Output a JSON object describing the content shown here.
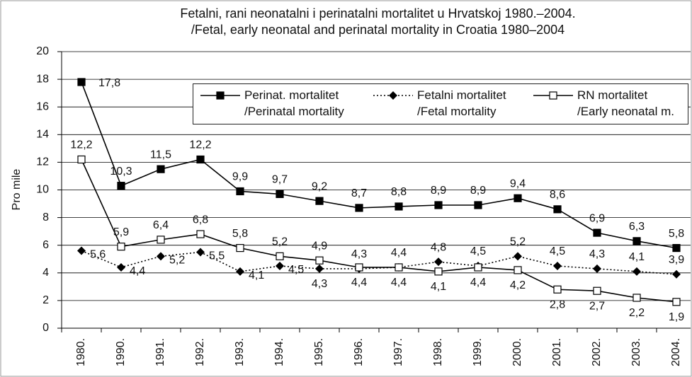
{
  "chart_data": {
    "type": "line",
    "title": "Fetalni, rani neonatalni i perinatalni mortalitet u Hrvatskoj 1980.–2004.\n/Fetal, early neonatal and perinatal mortality in Croatia 1980–2004",
    "y_label": "Pro mile",
    "categories": [
      "1980.",
      "1990.",
      "1991.",
      "1992.",
      "1993.",
      "1994.",
      "1995.",
      "1996.",
      "1997.",
      "1998.",
      "1999.",
      "2000.",
      "2001.",
      "2002.",
      "2003.",
      "2004."
    ],
    "series": [
      {
        "name": "Perinat. mortalitet\n/Perinatal mortality",
        "color": "#000000",
        "line_style": "solid",
        "marker": "square",
        "values": [
          17.8,
          10.3,
          11.5,
          12.2,
          9.9,
          9.7,
          9.2,
          8.7,
          8.8,
          8.9,
          8.9,
          9.4,
          8.6,
          6.9,
          6.3,
          5.8
        ],
        "value_labels": [
          "17,8",
          "10,3",
          "11,5",
          "12,2",
          "9,9",
          "9,7",
          "9,2",
          "8,7",
          "8,8",
          "8,9",
          "8,9",
          "9,4",
          "8,6",
          "6,9",
          "6,3",
          "5,8"
        ]
      },
      {
        "name": "Fetalni mortalitet\n/Fetal mortality",
        "color": "#000000",
        "line_style": "dotted",
        "marker": "diamond",
        "values": [
          5.6,
          4.4,
          5.2,
          5.5,
          4.1,
          4.5,
          4.3,
          4.3,
          4.4,
          4.8,
          4.5,
          5.2,
          4.5,
          4.3,
          4.1,
          3.9
        ],
        "value_labels": [
          "5,6",
          "4,4",
          "5,2",
          "5,5",
          "4,1",
          "4,5",
          "4,3",
          "4,3",
          "4,4",
          "4,8",
          "4,5",
          "5,2",
          "4,5",
          "4,3",
          "4,1",
          "3,9"
        ]
      },
      {
        "name": "RN mortalitet\n/Early neonatal m.",
        "color": "#000000",
        "line_style": "solid",
        "marker": "square-open",
        "values": [
          12.2,
          5.9,
          6.4,
          6.8,
          5.8,
          5.2,
          4.9,
          4.4,
          4.4,
          4.1,
          4.4,
          4.2,
          2.8,
          2.7,
          2.2,
          1.9
        ],
        "value_labels": [
          "12,2",
          "5,9",
          "6,4",
          "6,8",
          "5,8",
          "5,2",
          "4,9",
          "4,4",
          "4,4",
          "4,1",
          "4,4",
          "4,2",
          "2,8",
          "2,7",
          "2,2",
          "1,9"
        ]
      }
    ],
    "ylim": [
      0,
      20
    ],
    "yticks": [
      0,
      2,
      4,
      6,
      8,
      10,
      12,
      14,
      16,
      18,
      20
    ],
    "grid": true
  }
}
